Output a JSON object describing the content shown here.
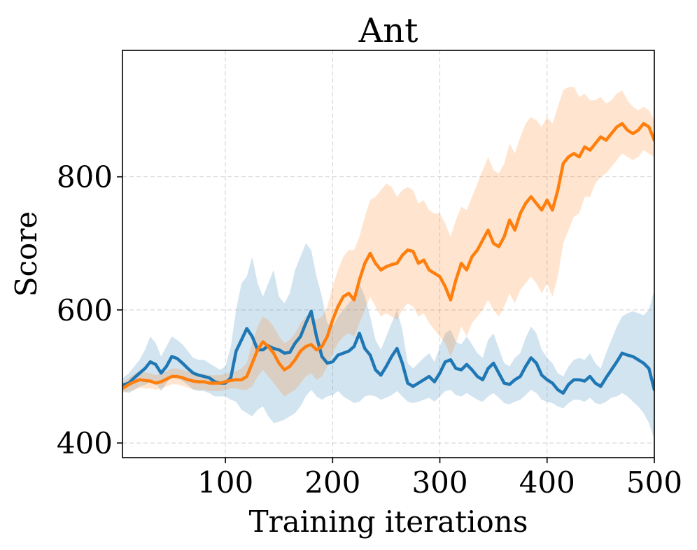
{
  "chart_data": {
    "type": "line",
    "title": "Ant",
    "xlabel": "Training iterations",
    "ylabel": "Score",
    "xlim": [
      4,
      500
    ],
    "ylim": [
      378,
      990
    ],
    "xticks": [
      100,
      200,
      300,
      400,
      500
    ],
    "xtick_labels": [
      "100",
      "200",
      "300",
      "400",
      "500"
    ],
    "yticks": [
      400,
      600,
      800
    ],
    "ytick_labels": [
      "400",
      "600",
      "800"
    ],
    "grid": true,
    "legend": "none",
    "series": [
      {
        "name": "blue",
        "color": "#1f77b4",
        "x": [
          4,
          10,
          15,
          20,
          25,
          30,
          35,
          40,
          45,
          50,
          55,
          60,
          65,
          70,
          75,
          80,
          85,
          90,
          95,
          100,
          105,
          110,
          115,
          120,
          125,
          130,
          135,
          140,
          145,
          150,
          155,
          160,
          165,
          170,
          175,
          180,
          185,
          190,
          195,
          200,
          205,
          210,
          215,
          220,
          225,
          230,
          235,
          240,
          245,
          250,
          255,
          260,
          265,
          270,
          275,
          280,
          285,
          290,
          295,
          300,
          305,
          310,
          315,
          320,
          325,
          330,
          335,
          340,
          345,
          350,
          355,
          360,
          365,
          370,
          375,
          380,
          385,
          390,
          395,
          400,
          405,
          410,
          415,
          420,
          425,
          430,
          435,
          440,
          445,
          450,
          455,
          460,
          465,
          470,
          475,
          480,
          485,
          490,
          495,
          500
        ],
        "y": [
          487,
          490,
          498,
          505,
          512,
          522,
          518,
          505,
          515,
          530,
          527,
          520,
          512,
          505,
          502,
          500,
          498,
          492,
          490,
          490,
          498,
          538,
          555,
          572,
          560,
          540,
          540,
          546,
          542,
          540,
          535,
          536,
          550,
          560,
          580,
          598,
          560,
          530,
          520,
          522,
          532,
          535,
          538,
          545,
          565,
          542,
          532,
          510,
          502,
          515,
          530,
          542,
          520,
          490,
          485,
          490,
          495,
          500,
          492,
          505,
          522,
          525,
          512,
          510,
          518,
          510,
          500,
          495,
          512,
          520,
          505,
          490,
          488,
          495,
          500,
          515,
          528,
          520,
          502,
          495,
          490,
          480,
          475,
          488,
          495,
          495,
          493,
          500,
          490,
          485,
          498,
          510,
          522,
          535,
          532,
          530,
          525,
          520,
          512,
          480
        ],
        "lower": [
          478,
          475,
          480,
          485,
          487,
          492,
          490,
          478,
          490,
          500,
          498,
          493,
          487,
          480,
          478,
          478,
          475,
          470,
          470,
          470,
          465,
          462,
          450,
          445,
          440,
          450,
          455,
          440,
          430,
          432,
          435,
          440,
          445,
          455,
          470,
          480,
          470,
          465,
          470,
          472,
          478,
          470,
          465,
          460,
          462,
          470,
          472,
          470,
          465,
          468,
          472,
          478,
          470,
          462,
          460,
          462,
          465,
          468,
          462,
          470,
          478,
          480,
          472,
          470,
          475,
          470,
          465,
          462,
          470,
          475,
          468,
          460,
          458,
          462,
          465,
          472,
          480,
          475,
          465,
          462,
          460,
          455,
          452,
          460,
          465,
          465,
          462,
          468,
          460,
          458,
          462,
          468,
          470,
          475,
          470,
          462,
          455,
          445,
          430,
          405
        ],
        "upper": [
          497,
          505,
          515,
          525,
          540,
          560,
          550,
          530,
          545,
          560,
          555,
          548,
          538,
          528,
          525,
          525,
          520,
          515,
          510,
          515,
          545,
          600,
          640,
          650,
          680,
          640,
          620,
          640,
          660,
          620,
          610,
          625,
          660,
          680,
          700,
          690,
          650,
          620,
          580,
          575,
          590,
          600,
          610,
          620,
          640,
          620,
          590,
          555,
          540,
          560,
          580,
          600,
          570,
          520,
          512,
          520,
          528,
          535,
          522,
          545,
          565,
          570,
          552,
          548,
          560,
          548,
          535,
          528,
          555,
          565,
          542,
          520,
          515,
          528,
          535,
          558,
          575,
          565,
          540,
          528,
          520,
          505,
          500,
          515,
          525,
          528,
          525,
          535,
          520,
          512,
          535,
          555,
          575,
          590,
          595,
          598,
          595,
          592,
          600,
          630
        ]
      },
      {
        "name": "orange",
        "color": "#ff7f0e",
        "x": [
          4,
          10,
          15,
          20,
          25,
          30,
          35,
          40,
          45,
          50,
          55,
          60,
          65,
          70,
          75,
          80,
          85,
          90,
          95,
          100,
          105,
          110,
          115,
          120,
          125,
          130,
          135,
          140,
          145,
          150,
          155,
          160,
          165,
          170,
          175,
          180,
          185,
          190,
          195,
          200,
          205,
          210,
          215,
          220,
          225,
          230,
          235,
          240,
          245,
          250,
          255,
          260,
          265,
          270,
          275,
          280,
          285,
          290,
          295,
          300,
          305,
          310,
          315,
          320,
          325,
          330,
          335,
          340,
          345,
          350,
          355,
          360,
          365,
          370,
          375,
          380,
          385,
          390,
          395,
          400,
          405,
          410,
          415,
          420,
          425,
          430,
          435,
          440,
          445,
          450,
          455,
          460,
          465,
          470,
          475,
          480,
          485,
          490,
          495,
          500
        ],
        "y": [
          482,
          488,
          492,
          495,
          494,
          493,
          490,
          492,
          496,
          500,
          500,
          498,
          495,
          493,
          492,
          492,
          490,
          490,
          490,
          492,
          494,
          495,
          495,
          500,
          520,
          540,
          552,
          545,
          535,
          520,
          510,
          515,
          525,
          538,
          545,
          548,
          540,
          545,
          560,
          585,
          605,
          620,
          625,
          615,
          645,
          670,
          685,
          670,
          660,
          665,
          668,
          670,
          682,
          690,
          688,
          670,
          675,
          660,
          655,
          650,
          635,
          615,
          645,
          670,
          660,
          680,
          690,
          705,
          720,
          700,
          695,
          710,
          735,
          720,
          745,
          760,
          770,
          760,
          750,
          765,
          750,
          780,
          820,
          830,
          835,
          830,
          845,
          840,
          850,
          860,
          855,
          865,
          875,
          880,
          870,
          865,
          870,
          880,
          875,
          855
        ],
        "lower": [
          475,
          478,
          480,
          483,
          482,
          482,
          480,
          482,
          485,
          488,
          488,
          486,
          483,
          481,
          480,
          480,
          478,
          478,
          478,
          480,
          482,
          482,
          480,
          480,
          485,
          500,
          510,
          500,
          490,
          480,
          470,
          475,
          480,
          490,
          500,
          505,
          495,
          500,
          515,
          535,
          550,
          560,
          565,
          560,
          580,
          600,
          620,
          605,
          590,
          595,
          590,
          585,
          600,
          610,
          605,
          590,
          595,
          580,
          570,
          560,
          550,
          530,
          550,
          575,
          560,
          580,
          590,
          600,
          615,
          600,
          590,
          605,
          625,
          610,
          630,
          640,
          650,
          640,
          625,
          640,
          620,
          650,
          700,
          720,
          740,
          745,
          770,
          770,
          790,
          800,
          805,
          815,
          825,
          835,
          830,
          825,
          830,
          840,
          835,
          830
        ],
        "upper": [
          490,
          498,
          504,
          508,
          506,
          505,
          502,
          504,
          508,
          512,
          512,
          510,
          507,
          505,
          504,
          504,
          502,
          502,
          502,
          504,
          506,
          508,
          512,
          520,
          550,
          575,
          590,
          585,
          575,
          560,
          550,
          555,
          565,
          580,
          590,
          592,
          585,
          590,
          605,
          635,
          660,
          680,
          690,
          690,
          710,
          740,
          765,
          770,
          780,
          790,
          785,
          770,
          780,
          785,
          780,
          760,
          765,
          750,
          745,
          745,
          730,
          710,
          735,
          755,
          750,
          770,
          790,
          810,
          830,
          810,
          805,
          820,
          850,
          835,
          860,
          880,
          890,
          885,
          875,
          890,
          880,
          905,
          930,
          935,
          935,
          920,
          925,
          915,
          915,
          920,
          910,
          915,
          925,
          930,
          915,
          905,
          900,
          905,
          900,
          885
        ]
      }
    ]
  }
}
